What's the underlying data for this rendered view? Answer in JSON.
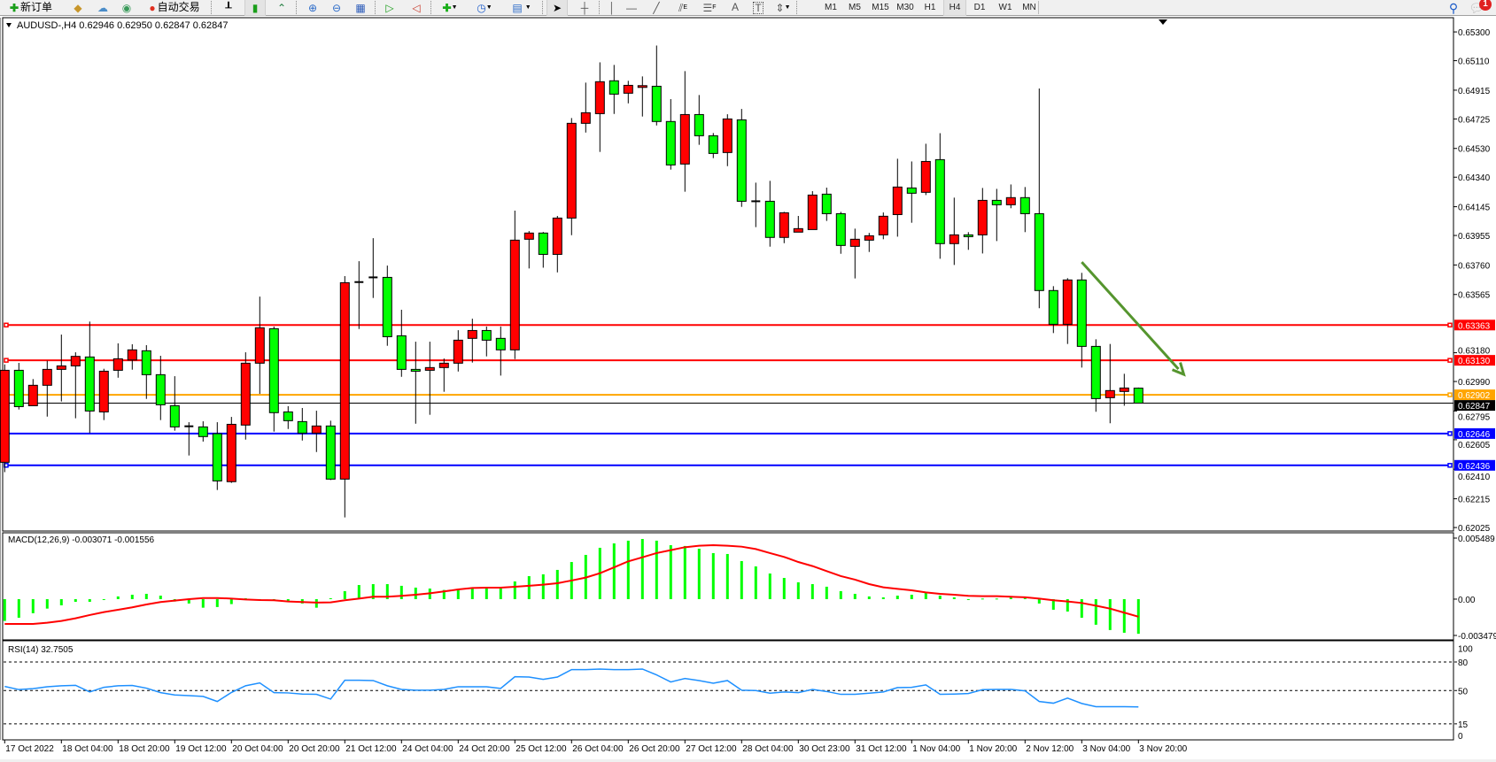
{
  "toolbar": {
    "new_order_label": "新订单",
    "auto_trading_label": "自动交易",
    "timeframes": [
      "M1",
      "M5",
      "M15",
      "M30",
      "H1",
      "H4",
      "D1",
      "W1",
      "MN"
    ],
    "active_timeframe": "H4",
    "text_tool_label": "A",
    "text_label_tool": "T",
    "equidistant_label": "E",
    "fibo_label": "F",
    "notification_count": "1",
    "icons": [
      "new-order-icon",
      "market-watch-icon",
      "cloud-icon",
      "signals-icon",
      "auto-trading-icon",
      "bar-chart-icon",
      "candlestick-icon",
      "line-chart-icon",
      "zoom-in-icon",
      "zoom-out-icon",
      "tile-windows-icon",
      "chart-shift-icon",
      "auto-scroll-icon",
      "indicators-icon",
      "periods-icon",
      "templates-icon",
      "cursor-icon",
      "crosshair-icon",
      "vertical-line-icon",
      "horizontal-line-icon",
      "trendline-icon",
      "equidistant-channel-icon",
      "fibonacci-icon",
      "text-icon",
      "text-label-icon",
      "arrows-icon",
      "search-icon",
      "notification-icon"
    ]
  },
  "chart": {
    "header": "AUDUSD-,H4  0.62946 0.62950 0.62847 0.62847",
    "colors": {
      "bull": "#FF0000",
      "bear": "#00FF00",
      "doji": "#000000",
      "outline": "#000000",
      "macd_hist": "#00FF00",
      "macd_signal": "#FF0000",
      "rsi": "#1E90FF",
      "trendline": "#55952E"
    }
  },
  "chart_data": [
    {
      "type": "candlestick",
      "symbol": "AUDUSD-",
      "timeframe": "H4",
      "ylim": [
        0.62002,
        0.65394
      ],
      "y_ticks": [
        "0.65300",
        "0.65110",
        "0.64915",
        "0.64725",
        "0.64530",
        "0.64340",
        "0.64145",
        "0.63955",
        "0.63760",
        "0.63565",
        "0.63180",
        "0.62990",
        "0.62795",
        "0.62605",
        "0.62410",
        "0.62215",
        "0.62025"
      ],
      "x_ticks": [
        {
          "bar": 0,
          "label": "17 Oct 2022"
        },
        {
          "bar": 4,
          "label": "18 Oct 04:00"
        },
        {
          "bar": 8,
          "label": "18 Oct 20:00"
        },
        {
          "bar": 12,
          "label": "19 Oct 12:00"
        },
        {
          "bar": 16,
          "label": "20 Oct 04:00"
        },
        {
          "bar": 20,
          "label": "20 Oct 20:00"
        },
        {
          "bar": 24,
          "label": "21 Oct 12:00"
        },
        {
          "bar": 28,
          "label": "24 Oct 04:00"
        },
        {
          "bar": 32,
          "label": "24 Oct 20:00"
        },
        {
          "bar": 36,
          "label": "25 Oct 12:00"
        },
        {
          "bar": 40,
          "label": "26 Oct 04:00"
        },
        {
          "bar": 44,
          "label": "26 Oct 20:00"
        },
        {
          "bar": 48,
          "label": "27 Oct 12:00"
        },
        {
          "bar": 52,
          "label": "28 Oct 04:00"
        },
        {
          "bar": 56,
          "label": "30 Oct 23:00"
        },
        {
          "bar": 60,
          "label": "31 Oct 12:00"
        },
        {
          "bar": 64,
          "label": "1 Nov 04:00"
        },
        {
          "bar": 68,
          "label": "1 Nov 20:00"
        },
        {
          "bar": 72,
          "label": "2 Nov 12:00"
        },
        {
          "bar": 76,
          "label": "3 Nov 04:00"
        },
        {
          "bar": 80,
          "label": "3 Nov 20:00"
        }
      ],
      "ohlc_columns": [
        "open",
        "high",
        "low",
        "close"
      ],
      "ohlc": [
        [
          0.62456,
          0.63103,
          0.62391,
          0.63064
        ],
        [
          0.63064,
          0.63113,
          0.62805,
          0.62824
        ],
        [
          0.6283,
          0.63006,
          0.6283,
          0.62965
        ],
        [
          0.62965,
          0.63127,
          0.62758,
          0.6307
        ],
        [
          0.6307,
          0.633,
          0.62858,
          0.63093
        ],
        [
          0.63093,
          0.63183,
          0.62747,
          0.63156
        ],
        [
          0.63152,
          0.63386,
          0.62649,
          0.62795
        ],
        [
          0.62789,
          0.63074,
          0.62735,
          0.63058
        ],
        [
          0.63064,
          0.63242,
          0.63015,
          0.6314
        ],
        [
          0.63132,
          0.63236,
          0.63068,
          0.63199
        ],
        [
          0.63193,
          0.6323,
          0.62875,
          0.63035
        ],
        [
          0.63035,
          0.6316,
          0.62735,
          0.62836
        ],
        [
          0.6283,
          0.63025,
          0.62665,
          0.6269
        ],
        [
          0.62694,
          0.62721,
          0.62501,
          0.62694
        ],
        [
          0.6269,
          0.62727,
          0.62593,
          0.62626
        ],
        [
          0.62645,
          0.62721,
          0.62273,
          0.62333
        ],
        [
          0.62328,
          0.62756,
          0.6232,
          0.62707
        ],
        [
          0.62702,
          0.63183,
          0.62606,
          0.63111
        ],
        [
          0.63111,
          0.63551,
          0.62908,
          0.63345
        ],
        [
          0.63339,
          0.63353,
          0.62659,
          0.62784
        ],
        [
          0.62789,
          0.62827,
          0.62676,
          0.62731
        ],
        [
          0.62725,
          0.62815,
          0.626,
          0.62649
        ],
        [
          0.62649,
          0.62797,
          0.62524,
          0.62696
        ],
        [
          0.62696,
          0.62731,
          0.62339,
          0.62345
        ],
        [
          0.62345,
          0.63686,
          0.62092,
          0.63643
        ],
        [
          0.63647,
          0.63785,
          0.63337,
          0.63647
        ],
        [
          0.63678,
          0.63937,
          0.63542,
          0.63678
        ],
        [
          0.63678,
          0.63756,
          0.63226,
          0.63286
        ],
        [
          0.63292,
          0.63464,
          0.63021,
          0.6307
        ],
        [
          0.6307,
          0.63253,
          0.62711,
          0.63058
        ],
        [
          0.63064,
          0.63253,
          0.6277,
          0.63082
        ],
        [
          0.63082,
          0.63142,
          0.62922,
          0.63111
        ],
        [
          0.63111,
          0.63329,
          0.63056,
          0.63263
        ],
        [
          0.63275,
          0.63405,
          0.63115,
          0.63327
        ],
        [
          0.63327,
          0.63353,
          0.63156,
          0.63263
        ],
        [
          0.63275,
          0.63353,
          0.63029,
          0.63199
        ],
        [
          0.63199,
          0.64119,
          0.63138,
          0.63924
        ],
        [
          0.6393,
          0.63984,
          0.63737,
          0.63971
        ],
        [
          0.63971,
          0.63978,
          0.63742,
          0.6383
        ],
        [
          0.6383,
          0.64084,
          0.63711,
          0.6407
        ],
        [
          0.6407,
          0.64731,
          0.63957,
          0.64696
        ],
        [
          0.64696,
          0.64965,
          0.64635,
          0.64766
        ],
        [
          0.6476,
          0.65099,
          0.64507,
          0.64971
        ],
        [
          0.64977,
          0.65082,
          0.64758,
          0.64889
        ],
        [
          0.64895,
          0.64977,
          0.64828,
          0.64947
        ],
        [
          0.64936,
          0.65006,
          0.64741,
          0.64945
        ],
        [
          0.64941,
          0.6521,
          0.64682,
          0.64708
        ],
        [
          0.64708,
          0.64856,
          0.6439,
          0.64421
        ],
        [
          0.64427,
          0.65041,
          0.64244,
          0.64754
        ],
        [
          0.64754,
          0.64883,
          0.64554,
          0.64614
        ],
        [
          0.64614,
          0.64632,
          0.64466,
          0.64497
        ],
        [
          0.64503,
          0.64756,
          0.64413,
          0.64725
        ],
        [
          0.64719,
          0.64791,
          0.64144,
          0.64181
        ],
        [
          0.64181,
          0.64304,
          0.6401,
          0.64181
        ],
        [
          0.64181,
          0.64316,
          0.63881,
          0.63942
        ],
        [
          0.63942,
          0.64111,
          0.63904,
          0.64105
        ],
        [
          0.63977,
          0.64084,
          0.63977,
          0.64
        ],
        [
          0.63994,
          0.64248,
          0.63994,
          0.64222
        ],
        [
          0.64228,
          0.64271,
          0.64051,
          0.64099
        ],
        [
          0.64099,
          0.64111,
          0.63834,
          0.63889
        ],
        [
          0.63883,
          0.64,
          0.63671,
          0.6393
        ],
        [
          0.63924,
          0.63972,
          0.63846,
          0.63953
        ],
        [
          0.63959,
          0.64107,
          0.6393,
          0.64082
        ],
        [
          0.64093,
          0.64462,
          0.63947,
          0.64275
        ],
        [
          0.64269,
          0.64444,
          0.64039,
          0.64234
        ],
        [
          0.6424,
          0.64561,
          0.64222,
          0.64444
        ],
        [
          0.64456,
          0.64631,
          0.63801,
          0.63901
        ],
        [
          0.63901,
          0.64205,
          0.6376,
          0.63959
        ],
        [
          0.63959,
          0.63977,
          0.6386,
          0.63947
        ],
        [
          0.63959,
          0.64269,
          0.63836,
          0.64187
        ],
        [
          0.64187,
          0.64263,
          0.63918,
          0.64158
        ],
        [
          0.64158,
          0.64292,
          0.64135,
          0.64205
        ],
        [
          0.64205,
          0.64275,
          0.63977,
          0.64099
        ],
        [
          0.64099,
          0.64926,
          0.63474,
          0.63591
        ],
        [
          0.63591,
          0.6362,
          0.6331,
          0.63368
        ],
        [
          0.63368,
          0.63673,
          0.63238,
          0.63661
        ],
        [
          0.63661,
          0.63708,
          0.63082,
          0.63222
        ],
        [
          0.63222,
          0.63269,
          0.6279,
          0.62877
        ],
        [
          0.62883,
          0.63238,
          0.62714,
          0.6293
        ],
        [
          0.62924,
          0.63041,
          0.6283,
          0.62947
        ],
        [
          0.62946,
          0.6295,
          0.62847,
          0.62847
        ]
      ],
      "horizontal_lines": [
        {
          "price": "0.63363",
          "color": "#FF0000"
        },
        {
          "price": "0.63130",
          "color": "#FF0000"
        },
        {
          "price": "0.62902",
          "color": "#FFA500"
        },
        {
          "price": "0.62646",
          "color": "#0000FF"
        },
        {
          "price": "0.62436",
          "color": "#0000FF"
        }
      ],
      "bid_line": {
        "price": "0.62847",
        "color": "#000000"
      },
      "trendline": {
        "start_time": "3 Nov 04:00",
        "start_price": 0.63779,
        "end_time": "4 Nov 08:00",
        "end_price": 0.63037,
        "arrow": true
      }
    },
    {
      "type": "bar+line",
      "title": "MACD(12,26,9) -0.003071 -0.001556",
      "ylim": [
        -0.00361,
        0.00588
      ],
      "y_ticks": [
        "0.005489",
        "0.00",
        "-0.003479"
      ],
      "histogram": [
        -0.00193,
        -0.00165,
        -0.00125,
        -0.00084,
        -0.00055,
        -0.00024,
        -0.00024,
        -5e-05,
        0.00024,
        0.00039,
        0.00047,
        0.00031,
        -0.00021,
        -0.00039,
        -0.00076,
        -0.0007,
        -0.00044,
        8e-05,
        -3e-05,
        -0.0001,
        -0.0002,
        -0.00039,
        -0.00076,
        8e-05,
        0.00071,
        0.00125,
        0.00133,
        0.00133,
        0.00118,
        0.00102,
        0.00094,
        0.00081,
        0.00089,
        0.00099,
        0.00099,
        0.00099,
        0.00157,
        0.00204,
        0.0022,
        0.00259,
        0.00329,
        0.00392,
        0.00455,
        0.00494,
        0.00518,
        0.00533,
        0.00518,
        0.00478,
        0.00471,
        0.00447,
        0.00408,
        0.004,
        0.00337,
        0.0029,
        0.00227,
        0.00188,
        0.00149,
        0.00133,
        0.0011,
        0.00071,
        0.00047,
        0.00024,
        0.00016,
        0.00031,
        0.00039,
        0.00063,
        0.00031,
        0.00016,
        -5e-05,
        5e-05,
        5e-05,
        0.00016,
        8e-05,
        -0.00039,
        -0.00094,
        -0.0011,
        -0.00165,
        -0.00227,
        -0.00274,
        -0.00298,
        -0.003071
      ],
      "signal": [
        -0.0022,
        -0.0022,
        -0.0022,
        -0.00209,
        -0.00193,
        -0.0017,
        -0.00141,
        -0.00115,
        -0.00094,
        -0.00073,
        -0.00047,
        -0.00026,
        -0.00013,
        0,
        0.0001,
        0.0001,
        5e-05,
        -3e-05,
        -8e-05,
        -0.0001,
        -0.00021,
        -0.00026,
        -0.00031,
        -0.00029,
        -0.0001,
        5e-05,
        0.00021,
        0.00021,
        0.00029,
        0.00039,
        0.00052,
        0.00068,
        0.00086,
        0.00099,
        0.00102,
        0.00102,
        0.0011,
        0.00118,
        0.00128,
        0.00141,
        0.00165,
        0.00191,
        0.0023,
        0.00282,
        0.00335,
        0.00371,
        0.00408,
        0.00434,
        0.0046,
        0.00473,
        0.00478,
        0.00473,
        0.00465,
        0.00444,
        0.00408,
        0.00374,
        0.00329,
        0.00293,
        0.00248,
        0.00204,
        0.00173,
        0.00133,
        0.00105,
        0.00091,
        0.00078,
        0.0006,
        0.00047,
        0.00039,
        0.00029,
        0.00026,
        0.00026,
        0.00021,
        0.00016,
        5e-05,
        -0.0001,
        -0.00021,
        -0.00034,
        -0.00058,
        -0.00084,
        -0.0012,
        -0.001556
      ]
    },
    {
      "type": "line",
      "title": "RSI(14) 32.7505",
      "ylim": [
        0,
        100
      ],
      "y_ticks": [
        "100",
        "80",
        "50",
        "15",
        "0"
      ],
      "levels": [
        80,
        50,
        15
      ],
      "values": [
        54.3,
        51,
        52,
        54,
        55,
        55.5,
        48.5,
        53.4,
        55,
        55.3,
        52.5,
        47.8,
        45.4,
        44.7,
        43.8,
        38.5,
        48,
        55,
        58,
        47.8,
        47.5,
        46.3,
        46,
        41,
        60.8,
        60.8,
        60.5,
        55,
        51.2,
        50.3,
        50.3,
        51.2,
        54,
        54,
        54,
        52.2,
        64.5,
        64.2,
        61.8,
        64.2,
        72,
        72,
        72.6,
        72,
        72,
        72.6,
        66.4,
        59,
        62.7,
        60.5,
        57.7,
        60.5,
        50.3,
        50,
        47.2,
        48.5,
        47.8,
        51.2,
        49,
        46,
        46,
        47.2,
        48.5,
        53.1,
        53.4,
        55.9,
        46,
        46.3,
        46.9,
        50.9,
        51.2,
        51.2,
        49.7,
        38.5,
        36.7,
        42,
        36.4,
        33,
        33,
        33,
        32.75
      ]
    }
  ]
}
